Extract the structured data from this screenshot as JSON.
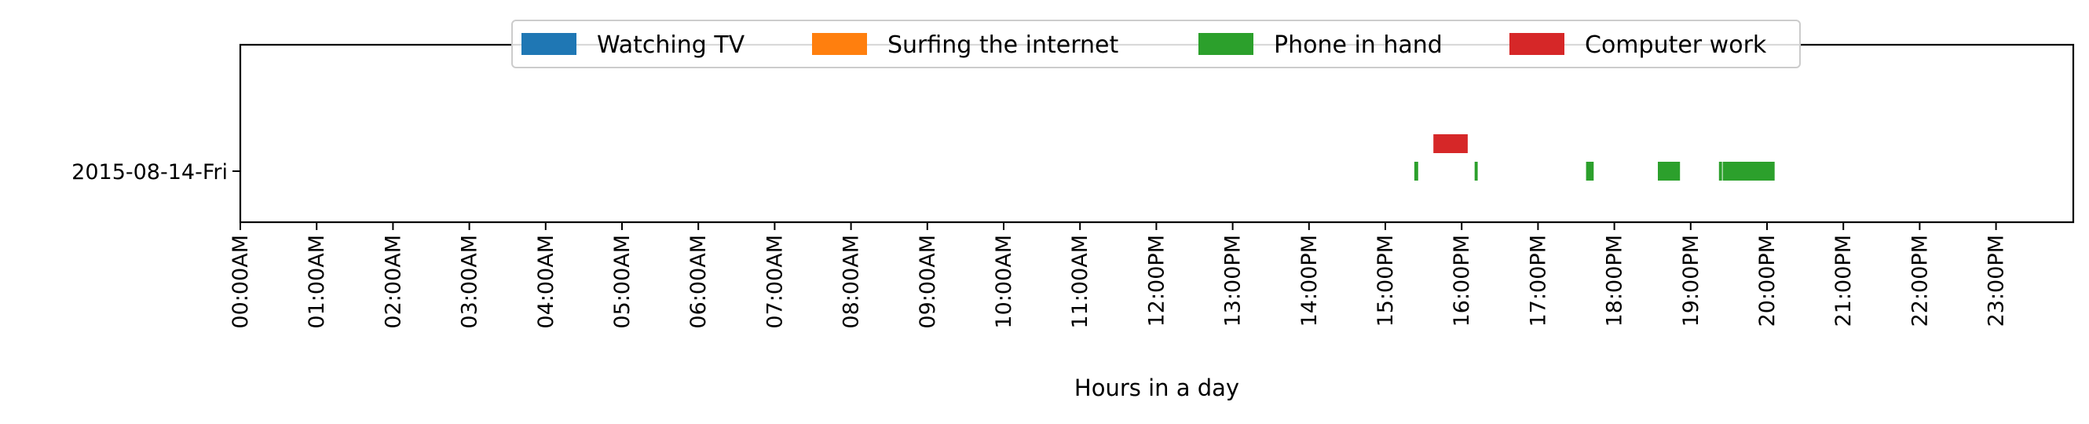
{
  "chart_data": {
    "type": "bar",
    "orientation": "horizontal-timeline",
    "title": "",
    "xlabel": "Hours in a day",
    "ylabel": "",
    "xlim": [
      0,
      24
    ],
    "x_tick_labels": [
      "00:00AM",
      "01:00AM",
      "02:00AM",
      "03:00AM",
      "04:00AM",
      "05:00AM",
      "06:00AM",
      "07:00AM",
      "08:00AM",
      "09:00AM",
      "10:00AM",
      "11:00AM",
      "12:00PM",
      "13:00PM",
      "14:00PM",
      "15:00PM",
      "16:00PM",
      "17:00PM",
      "18:00PM",
      "19:00PM",
      "20:00PM",
      "21:00PM",
      "22:00PM",
      "23:00PM"
    ],
    "categories": [
      "2015-08-14-Fri"
    ],
    "legend_position": "top-center",
    "series": [
      {
        "name": "Watching TV",
        "color": "#1f77b4",
        "lane": 0,
        "intervals": []
      },
      {
        "name": "Surfing the internet",
        "color": "#ff7f0e",
        "lane": 0,
        "intervals": []
      },
      {
        "name": "Phone in hand",
        "color": "#2ca02c",
        "lane": 0,
        "intervals": [
          [
            15.38,
            15.43
          ],
          [
            16.17,
            16.21
          ],
          [
            17.63,
            17.73
          ],
          [
            18.57,
            18.86
          ],
          [
            19.37,
            19.41
          ],
          [
            19.42,
            20.1
          ]
        ]
      },
      {
        "name": "Computer work",
        "color": "#d62728",
        "lane": 1,
        "intervals": [
          [
            15.63,
            16.08
          ]
        ]
      }
    ]
  }
}
